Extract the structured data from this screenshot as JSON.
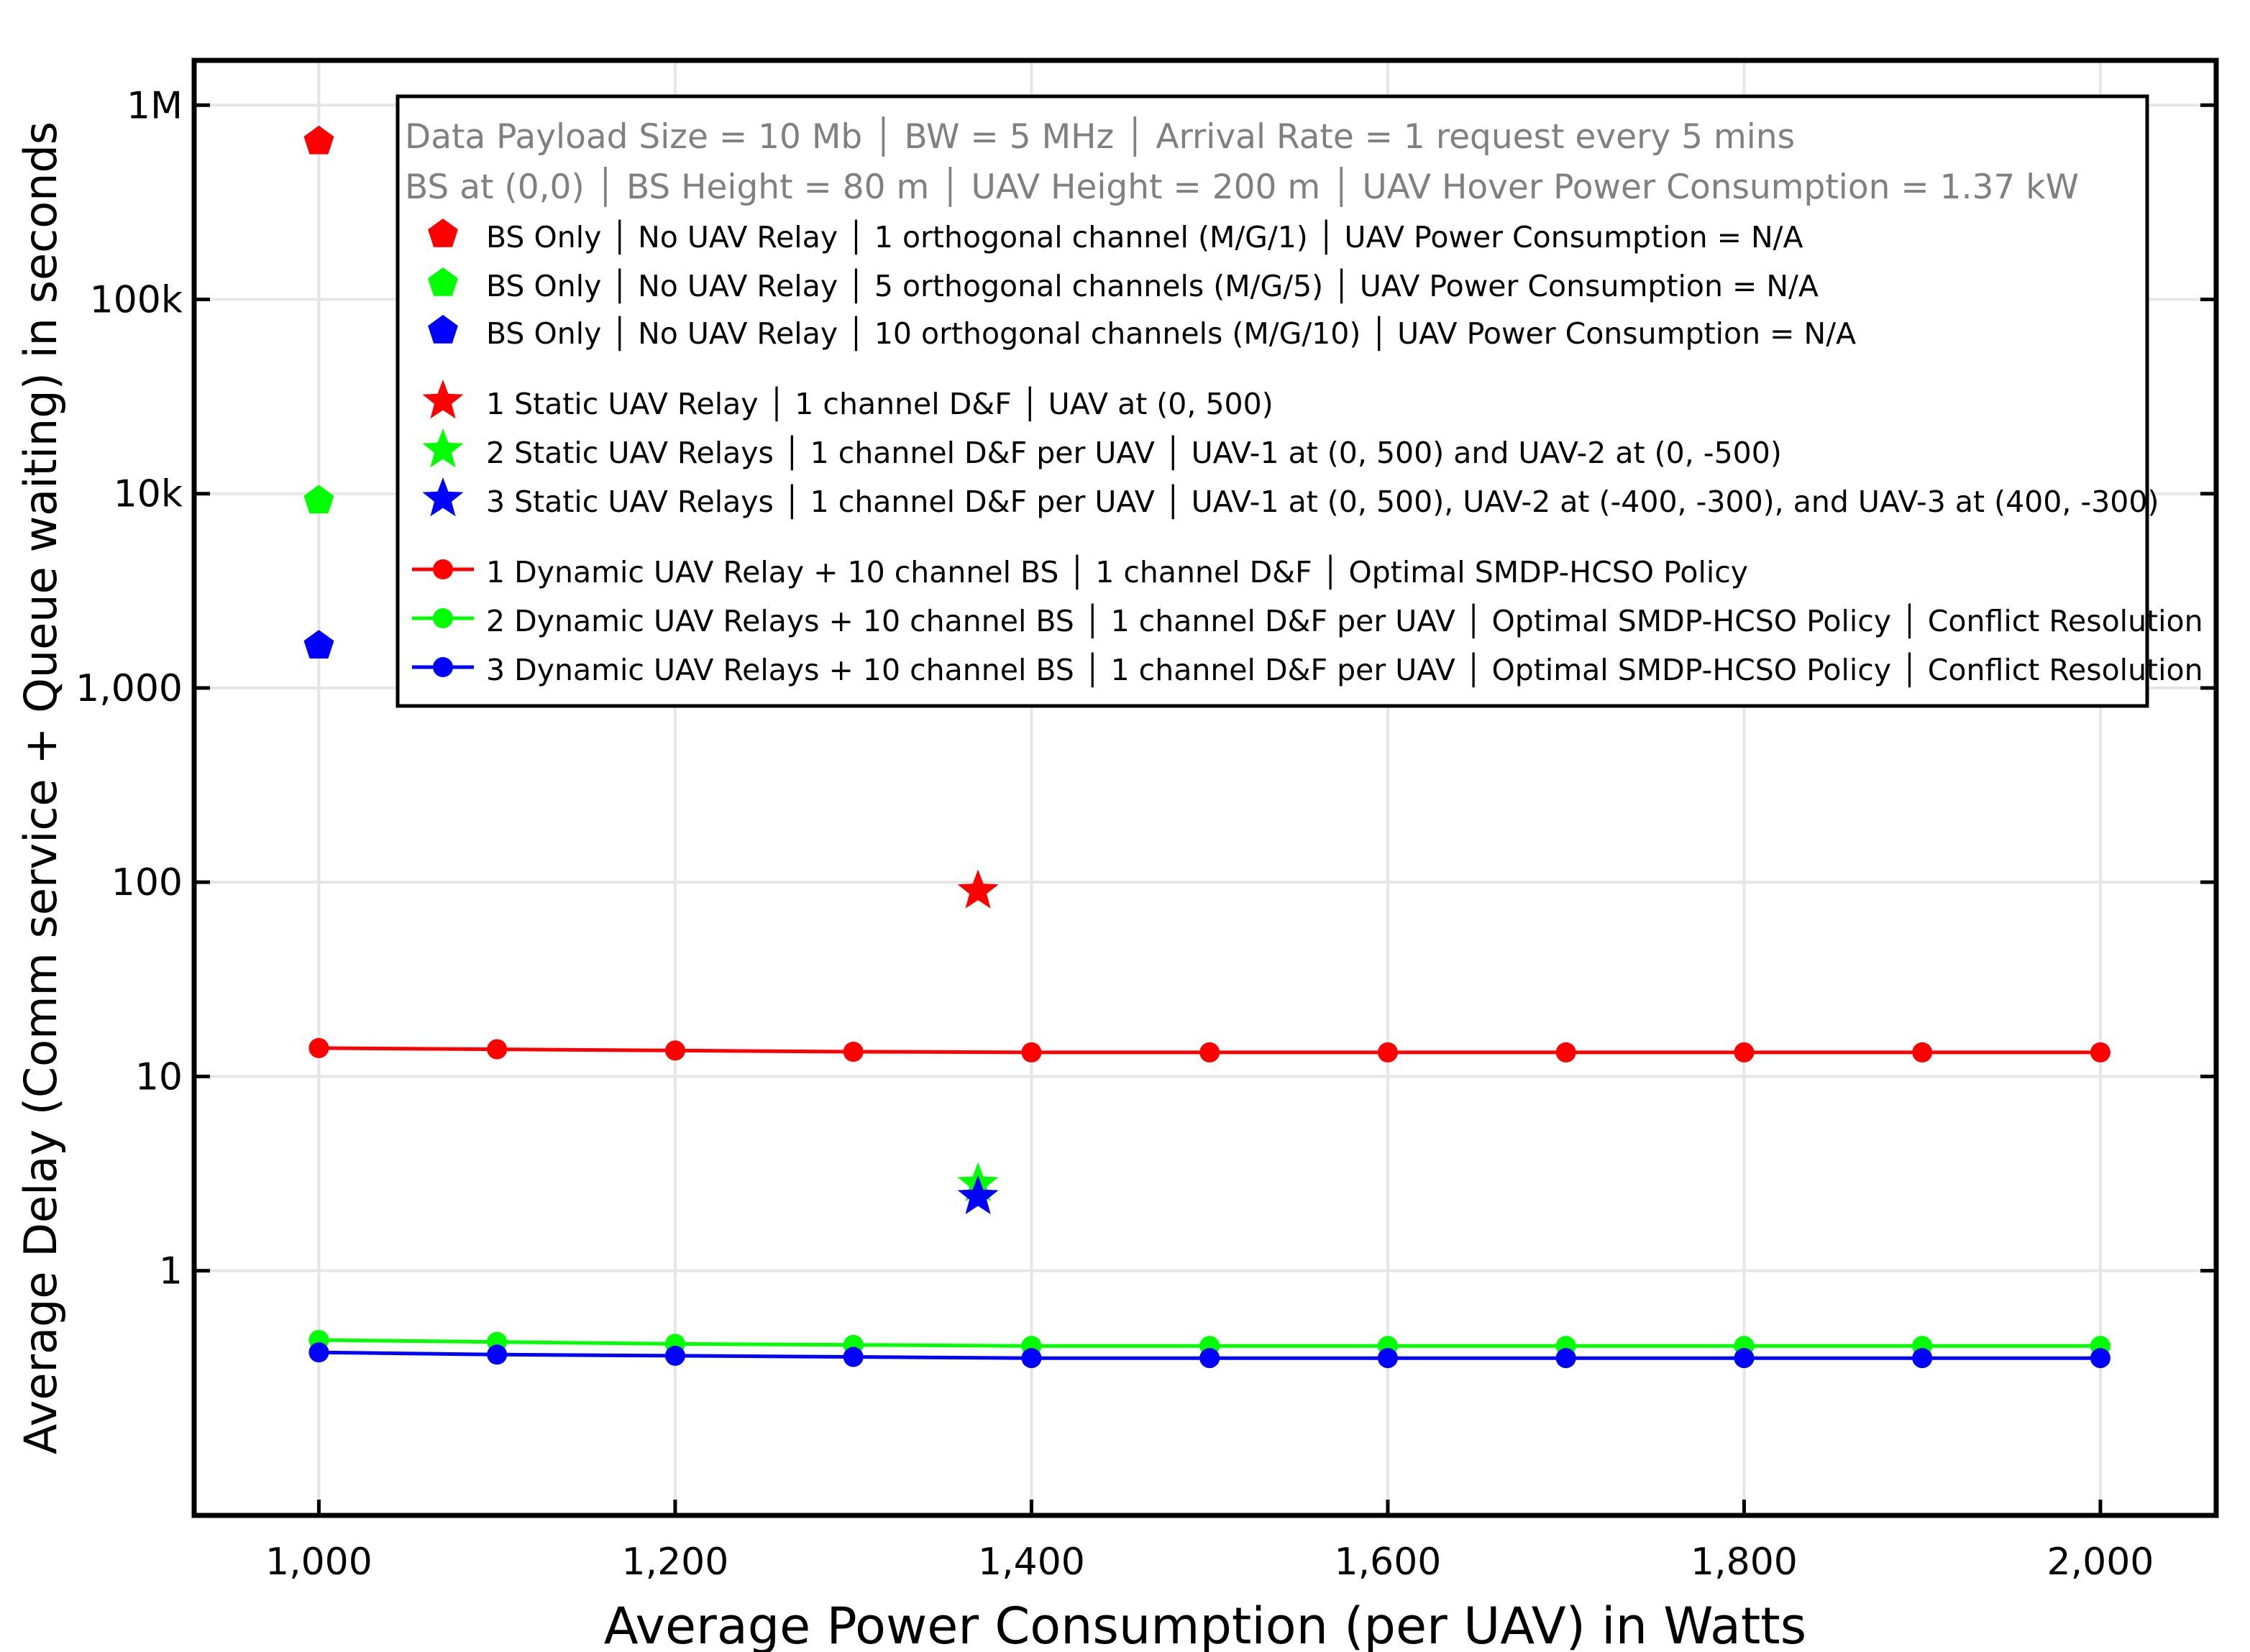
{
  "chart_data": {
    "type": "line",
    "xlabel": "Average Power Consumption (per UAV) in Watts",
    "ylabel": "Average Delay (Comm service + Queue waiting) in seconds",
    "yscale": "log",
    "xlim": [
      930,
      2065
    ],
    "ylim": [
      0.055,
      1700000
    ],
    "x_ticks": [
      1000,
      1200,
      1400,
      1600,
      1800,
      2000
    ],
    "x_tick_labels": [
      "1,000",
      "1,200",
      "1,400",
      "1,600",
      "1,800",
      "2,000"
    ],
    "y_ticks": [
      1,
      10,
      100,
      1000,
      10000,
      100000,
      1000000
    ],
    "y_tick_labels": [
      "1",
      "10",
      "100",
      "1,000",
      "10k",
      "100k",
      "1M"
    ],
    "grid": true,
    "legend_position": "top-right",
    "legend_header": [
      "Data Payload Size = 10 Mb │ BW = 5 MHz │ Arrival Rate = 1 request every 5 mins",
      "BS at (0,0) │ BS Height = 80 m │ UAV Height = 200 m │ UAV Hover Power Consumption = 1.37 kW"
    ],
    "series": [
      {
        "name": "BS Only │ No UAV Relay │ 1 orthogonal channel (M/G/1) │ UAV Power Consumption = N/A",
        "marker": "pentagon",
        "color": "#ff0000",
        "x": [
          1000
        ],
        "y": [
          650000
        ]
      },
      {
        "name": "BS Only │ No UAV Relay │ 5 orthogonal channels (M/G/5) │ UAV Power Consumption = N/A",
        "marker": "pentagon",
        "color": "#00ff00",
        "x": [
          1000
        ],
        "y": [
          9200
        ]
      },
      {
        "name": "BS Only │ No UAV Relay │ 10 orthogonal channels (M/G/10) │ UAV Power Consumption = N/A",
        "marker": "pentagon",
        "color": "#0000ff",
        "x": [
          1000
        ],
        "y": [
          1650
        ]
      },
      {
        "name": "1 Static UAV Relay │ 1 channel D&F │ UAV at (0, 500)",
        "marker": "star",
        "color": "#ff0000",
        "x": [
          1370
        ],
        "y": [
          90
        ]
      },
      {
        "name": "2 Static UAV Relays │ 1 channel D&F per UAV │ UAV-1 at (0, 500) and UAV-2 at (0, -500)",
        "marker": "star",
        "color": "#00ff00",
        "x": [
          1370
        ],
        "y": [
          2.8
        ]
      },
      {
        "name": "3 Static UAV Relays │ 1 channel D&F per UAV │ UAV-1 at (0, 500), UAV-2 at (-400, -300), and UAV-3 at (400, -300)",
        "marker": "star",
        "color": "#0000ff",
        "x": [
          1370
        ],
        "y": [
          2.4
        ]
      },
      {
        "name": "1 Dynamic UAV Relay + 10 channel BS │ 1 channel D&F │ Optimal SMDP-HCSO Policy",
        "marker": "circle-line",
        "color": "#ff0000",
        "x": [
          1000,
          1100,
          1200,
          1300,
          1400,
          1500,
          1600,
          1700,
          1800,
          1900,
          2000
        ],
        "y": [
          14.0,
          13.8,
          13.6,
          13.4,
          13.3,
          13.3,
          13.3,
          13.3,
          13.3,
          13.3,
          13.3
        ]
      },
      {
        "name": "2 Dynamic UAV Relays + 10 channel BS │ 1 channel D&F per UAV │ Optimal SMDP-HCSO Policy │ Conflict Resolution",
        "marker": "circle-line",
        "color": "#00ff00",
        "x": [
          1000,
          1100,
          1200,
          1300,
          1400,
          1500,
          1600,
          1700,
          1800,
          1900,
          2000
        ],
        "y": [
          0.44,
          0.43,
          0.42,
          0.415,
          0.41,
          0.41,
          0.41,
          0.41,
          0.41,
          0.41,
          0.41
        ]
      },
      {
        "name": "3 Dynamic UAV Relays + 10 channel BS │ 1 channel D&F per UAV │ Optimal SMDP-HCSO Policy │ Conflict Resolution",
        "marker": "circle-line",
        "color": "#0000ff",
        "x": [
          1000,
          1100,
          1200,
          1300,
          1400,
          1500,
          1600,
          1700,
          1800,
          1900,
          2000
        ],
        "y": [
          0.38,
          0.37,
          0.365,
          0.36,
          0.355,
          0.355,
          0.355,
          0.355,
          0.355,
          0.355,
          0.355
        ]
      }
    ]
  }
}
